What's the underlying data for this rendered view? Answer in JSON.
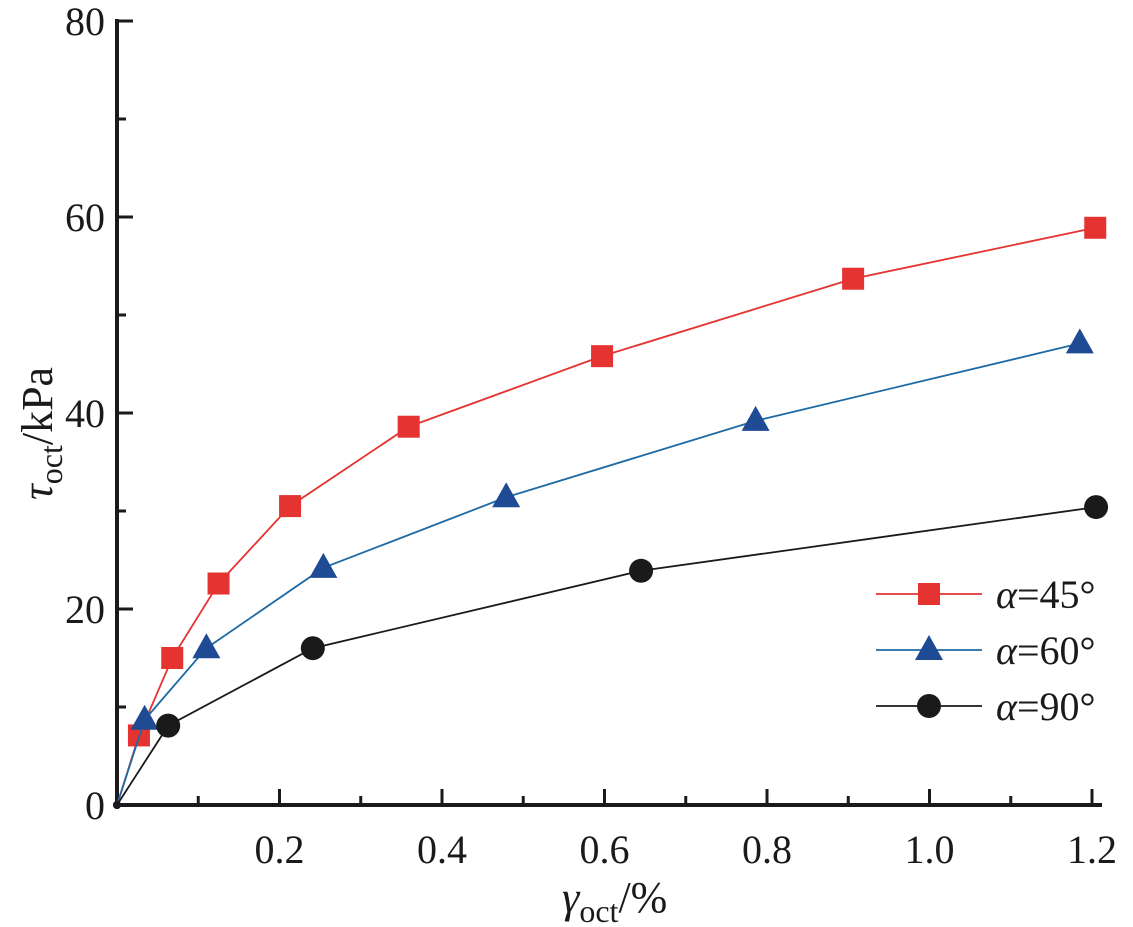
{
  "chart_data": {
    "type": "line",
    "title": "",
    "xlabel": {
      "main": "γ",
      "sub": "oct",
      "unit": "/%"
    },
    "ylabel": {
      "main": "τ",
      "sub": "oct",
      "unit": "/kPa"
    },
    "xlim": [
      0,
      1.2
    ],
    "ylim": [
      0,
      80
    ],
    "xticks": [
      0.2,
      0.4,
      0.6,
      0.8,
      1.0,
      1.2
    ],
    "xtick_labels": [
      "0.2",
      "0.4",
      "0.6",
      "0.8",
      "1.0",
      "1.2"
    ],
    "xminor": [
      0.1,
      0.3,
      0.5,
      0.7,
      0.9,
      1.1
    ],
    "yticks": [
      0,
      20,
      40,
      60,
      80
    ],
    "ytick_labels": [
      "0",
      "20",
      "40",
      "60",
      "80"
    ],
    "yminor": [
      10,
      30,
      50,
      70
    ],
    "grid": false,
    "legend_position": "right",
    "series": [
      {
        "name": "α=45°",
        "color": "#e43330",
        "marker": "square",
        "x": [
          0,
          0.027,
          0.068,
          0.125,
          0.213,
          0.359,
          0.597,
          0.906,
          1.204
        ],
        "y": [
          0,
          7.1,
          15.0,
          22.6,
          30.5,
          38.6,
          45.8,
          53.7,
          58.9
        ]
      },
      {
        "name": "α=60°",
        "color": "#1f4b94",
        "line_color": "#1d6aa5",
        "marker": "triangle",
        "x": [
          0,
          0.034,
          0.11,
          0.254,
          0.479,
          0.786,
          1.185
        ],
        "y": [
          0,
          8.7,
          16.0,
          24.2,
          31.4,
          39.2,
          47.1
        ]
      },
      {
        "name": "α=90°",
        "color": "#1a1a1a",
        "marker": "circle",
        "x": [
          0,
          0.063,
          0.241,
          0.645,
          1.205
        ],
        "y": [
          0,
          8.1,
          16.0,
          23.9,
          30.4
        ]
      }
    ]
  }
}
